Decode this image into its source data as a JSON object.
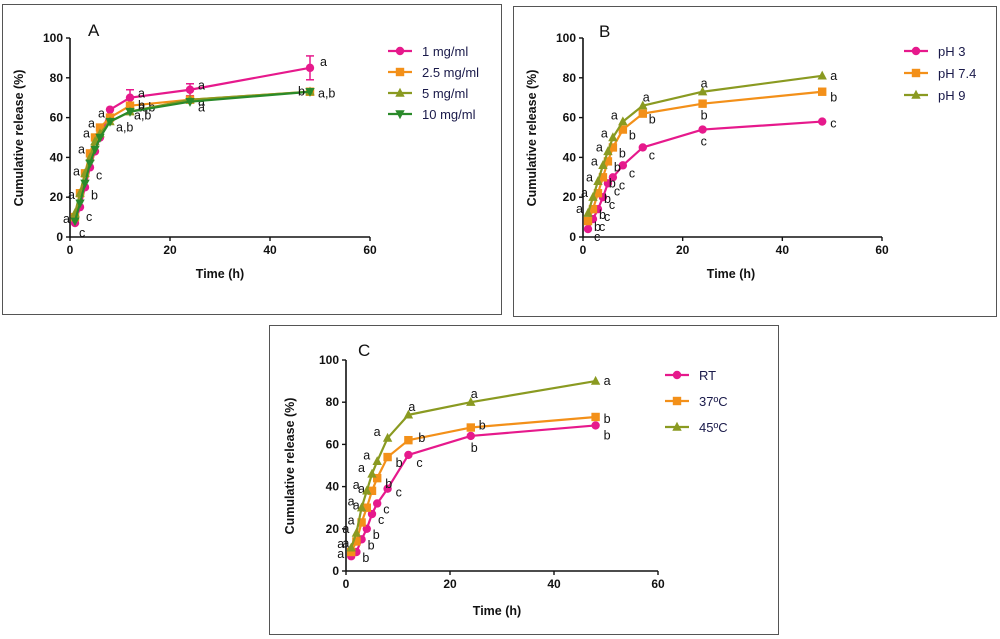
{
  "chart_data": [
    {
      "type": "line",
      "panel_label": "A",
      "xlabel": "Time (h)",
      "ylabel": "Cumulative release (%)",
      "xlim": [
        0,
        60
      ],
      "ylim": [
        0,
        100
      ],
      "xticks": [
        "0",
        "20",
        "40",
        "60"
      ],
      "yticks": [
        "0",
        "20",
        "40",
        "60",
        "80",
        "100"
      ],
      "x": [
        1,
        2,
        3,
        4,
        5,
        6,
        8,
        12,
        24,
        48
      ],
      "legend_position": "right",
      "series": [
        {
          "name": "1 mg/ml",
          "color": "#e6198c",
          "marker": "circle",
          "values": [
            7,
            15,
            25,
            35,
            43,
            50,
            64,
            70,
            74,
            85
          ],
          "error": [
            0,
            0,
            0,
            0,
            0,
            0,
            0,
            4,
            3,
            6
          ],
          "labels": [
            "c",
            "c",
            "b",
            "c",
            "",
            "",
            "",
            "a",
            "a",
            "a"
          ]
        },
        {
          "name": "2.5 mg/ml",
          "color": "#f39019",
          "marker": "square",
          "values": [
            10,
            22,
            32,
            42,
            50,
            55,
            60,
            66,
            69,
            73
          ],
          "labels": [
            "a",
            "a",
            "a",
            "a",
            "a",
            "a",
            "a",
            "a,b",
            "a",
            "a,b"
          ]
        },
        {
          "name": "5 mg/ml",
          "color": "#8a9a21",
          "marker": "triangle",
          "values": [
            12,
            22,
            32,
            40,
            48,
            52,
            58,
            63,
            69,
            73
          ],
          "labels": [
            "",
            "",
            "",
            "",
            "",
            "",
            "a,b",
            "a,b",
            "",
            ""
          ]
        },
        {
          "name": "10 mg/ml",
          "color": "#2a8a2a",
          "marker": "triangle-down",
          "values": [
            8,
            17,
            27,
            37,
            44,
            50,
            58,
            63,
            68,
            73
          ],
          "labels": [
            "",
            "",
            "",
            "",
            "",
            "",
            "",
            "b",
            "a",
            "b"
          ]
        }
      ]
    },
    {
      "type": "line",
      "panel_label": "B",
      "xlabel": "Time (h)",
      "ylabel": "Cumulative release (%)",
      "xlim": [
        0,
        60
      ],
      "ylim": [
        0,
        100
      ],
      "xticks": [
        "0",
        "20",
        "40",
        "60"
      ],
      "yticks": [
        "0",
        "20",
        "40",
        "60",
        "80",
        "100"
      ],
      "x": [
        1,
        2,
        3,
        4,
        5,
        6,
        8,
        12,
        24,
        48
      ],
      "legend_position": "top-right",
      "series": [
        {
          "name": "pH 3",
          "color": "#e6198c",
          "marker": "circle",
          "values": [
            4,
            9,
            14,
            20,
            27,
            30,
            36,
            45,
            54,
            58
          ],
          "labels": [
            "c",
            "c",
            "c",
            "c",
            "c",
            "c",
            "c",
            "c",
            "c",
            "c"
          ]
        },
        {
          "name": "pH 7.4",
          "color": "#f39019",
          "marker": "square",
          "values": [
            8,
            14,
            22,
            30,
            38,
            45,
            54,
            62,
            67,
            73
          ],
          "labels": [
            "b",
            "b",
            "b",
            "b",
            "b",
            "b",
            "b",
            "b",
            "b",
            "b"
          ]
        },
        {
          "name": "pH 9",
          "color": "#8a9a21",
          "marker": "triangle",
          "values": [
            12,
            20,
            28,
            36,
            43,
            50,
            58,
            66,
            73,
            81
          ],
          "labels": [
            "a",
            "a",
            "a",
            "a",
            "a",
            "a",
            "a",
            "a",
            "a",
            "a"
          ]
        }
      ]
    },
    {
      "type": "line",
      "panel_label": "C",
      "xlabel": "Time (h)",
      "ylabel": "Cumulative release (%)",
      "xlim": [
        0,
        60
      ],
      "ylim": [
        0,
        100
      ],
      "xticks": [
        "0",
        "20",
        "40",
        "60"
      ],
      "yticks": [
        "0",
        "20",
        "40",
        "60",
        "80",
        "100"
      ],
      "x": [
        1,
        2,
        3,
        4,
        5,
        6,
        8,
        12,
        24,
        48
      ],
      "legend_position": "top-right",
      "series": [
        {
          "name": "RT",
          "color": "#e6198c",
          "marker": "circle",
          "values": [
            7,
            9,
            15,
            20,
            27,
            32,
            39,
            55,
            64,
            69
          ],
          "labels": [
            "",
            "b",
            "b",
            "b",
            "c",
            "c",
            "c",
            "c",
            "b",
            "b"
          ]
        },
        {
          "name": "37ºC",
          "color": "#f39019",
          "marker": "square",
          "values": [
            9,
            14,
            23,
            30,
            38,
            44,
            54,
            62,
            68,
            73
          ],
          "labels": [
            "a",
            "a",
            "a",
            "a",
            "a",
            "b",
            "b",
            "b",
            "b",
            "b"
          ]
        },
        {
          "name": "45ºC",
          "color": "#8a9a21",
          "marker": "triangle",
          "values": [
            11,
            18,
            30,
            38,
            46,
            52,
            63,
            74,
            80,
            90
          ],
          "labels": [
            "a",
            "a",
            "a",
            "a",
            "a",
            "a",
            "a",
            "a",
            "a",
            "a"
          ]
        }
      ]
    }
  ]
}
